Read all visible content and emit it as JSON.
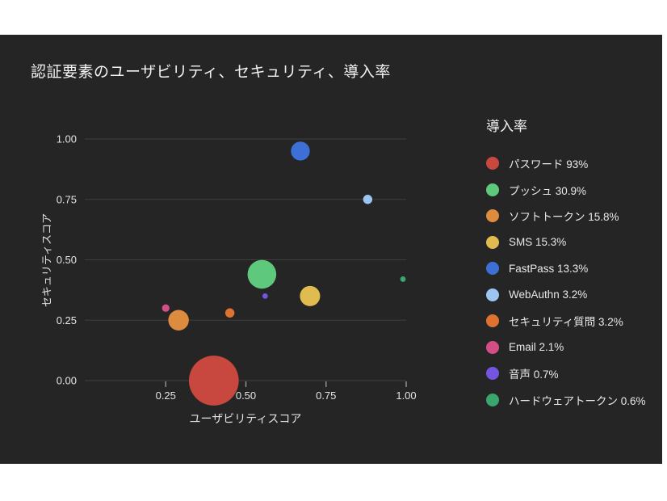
{
  "page": {
    "background": "#ffffff",
    "panel_background": "#252525",
    "grid_color": "#3e3e3e",
    "text_color": "#f2f2f2"
  },
  "title": "認証要素のユーザビリティ、セキュリティ、導入率",
  "chart_data": {
    "type": "scatter",
    "subtype": "bubble",
    "title": "認証要素のユーザビリティ、セキュリティ、導入率",
    "xlabel": "ユーザビリティスコア",
    "ylabel": "セキュリティスコア",
    "xlim": [
      0,
      1.0
    ],
    "ylim": [
      0,
      1.0
    ],
    "grid": "horizontal-only",
    "legend_position": "right",
    "legend_title": "導入率",
    "bubble_size_encodes": "導入率 (adoption %)",
    "x_ticks": [
      {
        "value": 0.25,
        "label": "0.25"
      },
      {
        "value": 0.5,
        "label": "0.50"
      },
      {
        "value": 0.75,
        "label": "0.75"
      },
      {
        "value": 1.0,
        "label": "1.00"
      }
    ],
    "y_ticks": [
      {
        "value": 0.0,
        "label": "0.00"
      },
      {
        "value": 0.25,
        "label": "0.25"
      },
      {
        "value": 0.5,
        "label": "0.50"
      },
      {
        "value": 0.75,
        "label": "0.75"
      },
      {
        "value": 1.0,
        "label": "1.00"
      }
    ],
    "series": [
      {
        "name": "パスワード",
        "legend_label": "パスワード 93%",
        "x": 0.4,
        "y": 0.0,
        "adoption_pct": 93,
        "color": "#c8473e"
      },
      {
        "name": "プッシュ",
        "legend_label": "プッシュ 30.9%",
        "x": 0.55,
        "y": 0.44,
        "adoption_pct": 30.9,
        "color": "#5ec97d"
      },
      {
        "name": "ソフトトークン",
        "legend_label": "ソフトトークン 15.8%",
        "x": 0.29,
        "y": 0.25,
        "adoption_pct": 15.8,
        "color": "#dd8b3e"
      },
      {
        "name": "SMS",
        "legend_label": "SMS 15.3%",
        "x": 0.7,
        "y": 0.35,
        "adoption_pct": 15.3,
        "color": "#e0bb4f"
      },
      {
        "name": "FastPass",
        "legend_label": "FastPass 13.3%",
        "x": 0.67,
        "y": 0.95,
        "adoption_pct": 13.3,
        "color": "#3d6fd6"
      },
      {
        "name": "WebAuthn",
        "legend_label": "WebAuthn 3.2%",
        "x": 0.88,
        "y": 0.75,
        "adoption_pct": 3.2,
        "color": "#9cc5f2"
      },
      {
        "name": "セキュリティ質問",
        "legend_label": "セキュリティ質問 3.2%",
        "x": 0.45,
        "y": 0.28,
        "adoption_pct": 3.2,
        "color": "#de7230"
      },
      {
        "name": "Email",
        "legend_label": "Email 2.1%",
        "x": 0.25,
        "y": 0.3,
        "adoption_pct": 2.1,
        "color": "#d44e86"
      },
      {
        "name": "音声",
        "legend_label": "音声 0.7%",
        "x": 0.56,
        "y": 0.35,
        "adoption_pct": 0.7,
        "color": "#7355e0"
      },
      {
        "name": "ハードウェアトークン",
        "legend_label": "ハードウェアトークン 0.6%",
        "x": 0.99,
        "y": 0.42,
        "adoption_pct": 0.6,
        "color": "#3aa56d"
      }
    ]
  }
}
